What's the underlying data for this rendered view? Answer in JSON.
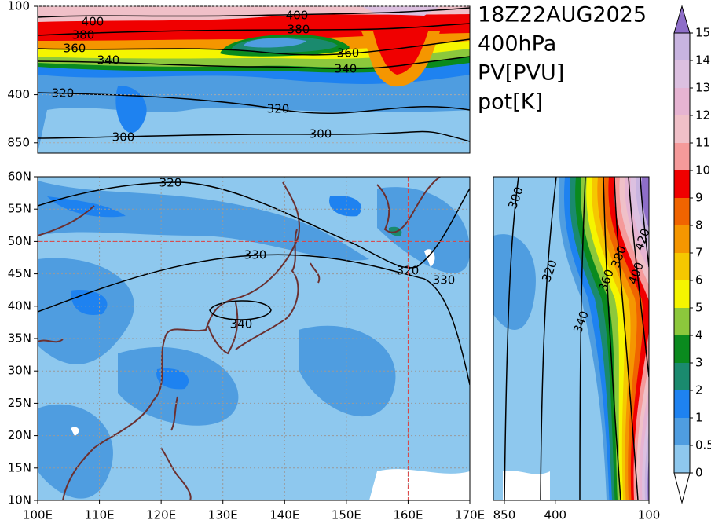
{
  "title": [
    "18Z22AUG2025",
    "400hPa",
    "PV[PVU]",
    "pot[K]"
  ],
  "colorbar": {
    "levels": [
      0,
      0.5,
      1,
      2,
      3,
      4,
      5,
      6,
      7,
      8,
      9,
      10,
      11,
      12,
      13,
      14,
      15
    ],
    "colors": [
      "#ffffff",
      "#8ec8ee",
      "#4f9de0",
      "#1e82f0",
      "#1a8a6e",
      "#0a8a1e",
      "#8cc83c",
      "#f5f500",
      "#f5c800",
      "#f59600",
      "#f06400",
      "#f00000",
      "#f59a9a",
      "#f0c0c8",
      "#e6b4d2",
      "#dcc0e0",
      "#c8b4e0",
      "#8e6ec8"
    ]
  },
  "map": {
    "xlim": [
      100,
      170
    ],
    "ylim": [
      10,
      60
    ],
    "xticks": [
      {
        "value": 100,
        "label": "100E"
      },
      {
        "value": 110,
        "label": "110E"
      },
      {
        "value": 120,
        "label": "120E"
      },
      {
        "value": 130,
        "label": "130E"
      },
      {
        "value": 140,
        "label": "140E"
      },
      {
        "value": 150,
        "label": "150E"
      },
      {
        "value": 160,
        "label": "160E"
      },
      {
        "value": 170,
        "label": "170E"
      }
    ],
    "yticks": [
      {
        "value": 10,
        "label": "10N"
      },
      {
        "value": 15,
        "label": "15N"
      },
      {
        "value": 20,
        "label": "20N"
      },
      {
        "value": 25,
        "label": "25N"
      },
      {
        "value": 30,
        "label": "30N"
      },
      {
        "value": 35,
        "label": "35N"
      },
      {
        "value": 40,
        "label": "40N"
      },
      {
        "value": 45,
        "label": "45N"
      },
      {
        "value": 50,
        "label": "50N"
      },
      {
        "value": 55,
        "label": "55N"
      },
      {
        "value": 60,
        "label": "60N"
      }
    ],
    "highlight_lon": 160,
    "highlight_lat": 50,
    "contour_labels": [
      320,
      320,
      330,
      330,
      340
    ]
  },
  "top_section": {
    "ylim": [
      100,
      1000
    ],
    "yticks": [
      100,
      400,
      850
    ],
    "log_scale": true,
    "contour_labels": [
      400,
      400,
      380,
      380,
      360,
      360,
      340,
      340,
      320,
      320,
      300,
      300
    ]
  },
  "side_section": {
    "xlim": [
      1000,
      100
    ],
    "xticks": [
      850,
      400,
      100
    ],
    "log_scale": true,
    "contour_labels": [
      300,
      320,
      340,
      360,
      380,
      400,
      420
    ]
  }
}
